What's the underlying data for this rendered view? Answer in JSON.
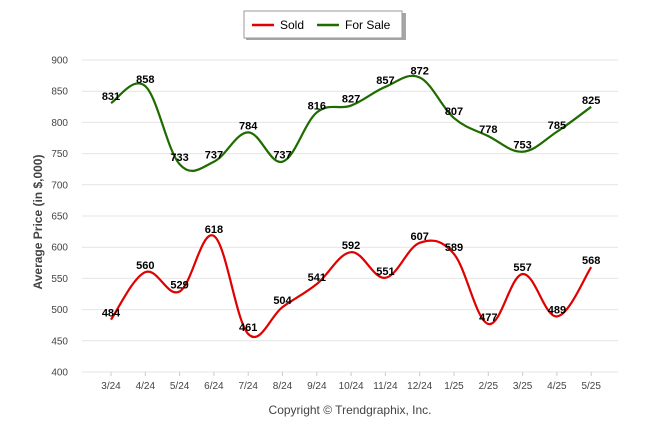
{
  "chart_data": {
    "type": "line",
    "categories": [
      "3/24",
      "4/24",
      "5/24",
      "6/24",
      "7/24",
      "8/24",
      "9/24",
      "10/24",
      "11/24",
      "12/24",
      "1/25",
      "2/25",
      "3/25",
      "4/25",
      "5/25"
    ],
    "series": [
      {
        "name": "Sold",
        "color": "#e00000",
        "values": [
          484,
          560,
          529,
          618,
          461,
          504,
          541,
          592,
          551,
          607,
          589,
          477,
          557,
          489,
          568
        ]
      },
      {
        "name": "For Sale",
        "color": "#1e6b00",
        "values": [
          831,
          858,
          733,
          737,
          784,
          737,
          816,
          827,
          857,
          872,
          807,
          778,
          753,
          785,
          825
        ]
      }
    ],
    "ylabel": "Average Price (in $,000)",
    "ylim": [
      400,
      900
    ],
    "yticks": [
      400,
      450,
      500,
      550,
      600,
      650,
      700,
      750,
      800,
      850,
      900
    ],
    "grid": true,
    "legend_position": "top-center",
    "footer": "Copyright © Trendgraphix, Inc."
  }
}
